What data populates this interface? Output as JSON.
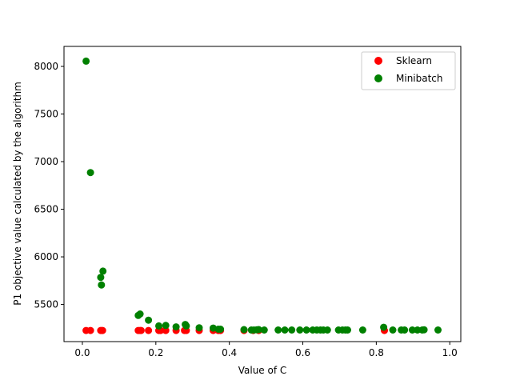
{
  "chart_data": {
    "type": "scatter",
    "title": "",
    "xlabel": "Value of C",
    "ylabel": "P1 objective value calculated by the algorithm",
    "xlim": [
      -0.05,
      1.03
    ],
    "ylim": [
      5110,
      8210
    ],
    "xticks": [
      0.0,
      0.2,
      0.4,
      0.6,
      0.8,
      1.0
    ],
    "xtick_labels": [
      "0.0",
      "0.2",
      "0.4",
      "0.6",
      "0.8",
      "1.0"
    ],
    "yticks": [
      5500,
      6000,
      6500,
      7000,
      7500,
      8000
    ],
    "ytick_labels": [
      "5500",
      "6000",
      "6500",
      "7000",
      "7500",
      "8000"
    ],
    "grid": false,
    "legend": "top-right",
    "series": [
      {
        "name": "Sklearn",
        "color": "#ff0000",
        "x": [
          0.01,
          0.022,
          0.05,
          0.055,
          0.152,
          0.157,
          0.16,
          0.18,
          0.208,
          0.213,
          0.227,
          0.255,
          0.278,
          0.283,
          0.318,
          0.356,
          0.37,
          0.376,
          0.44,
          0.465,
          0.48,
          0.822
        ],
        "y": [
          5227,
          5227,
          5227,
          5227,
          5227,
          5227,
          5227,
          5227,
          5227,
          5227,
          5227,
          5227,
          5227,
          5227,
          5227,
          5227,
          5227,
          5227,
          5227,
          5227,
          5227,
          5227
        ]
      },
      {
        "name": "Minibatch",
        "color": "#008000",
        "x": [
          0.01,
          0.022,
          0.05,
          0.052,
          0.056,
          0.152,
          0.157,
          0.18,
          0.208,
          0.227,
          0.255,
          0.28,
          0.283,
          0.318,
          0.356,
          0.37,
          0.376,
          0.44,
          0.46,
          0.467,
          0.475,
          0.48,
          0.495,
          0.533,
          0.551,
          0.57,
          0.592,
          0.61,
          0.627,
          0.638,
          0.648,
          0.656,
          0.667,
          0.697,
          0.708,
          0.716,
          0.722,
          0.763,
          0.82,
          0.845,
          0.868,
          0.877,
          0.898,
          0.912,
          0.925,
          0.93,
          0.968
        ],
        "y": [
          8055,
          6885,
          5785,
          5705,
          5850,
          5385,
          5400,
          5335,
          5275,
          5280,
          5265,
          5290,
          5275,
          5255,
          5252,
          5240,
          5240,
          5236,
          5232,
          5232,
          5234,
          5236,
          5232,
          5232,
          5232,
          5232,
          5232,
          5232,
          5232,
          5232,
          5232,
          5232,
          5232,
          5232,
          5232,
          5232,
          5232,
          5232,
          5260,
          5232,
          5232,
          5232,
          5232,
          5232,
          5232,
          5234,
          5232
        ]
      }
    ]
  }
}
